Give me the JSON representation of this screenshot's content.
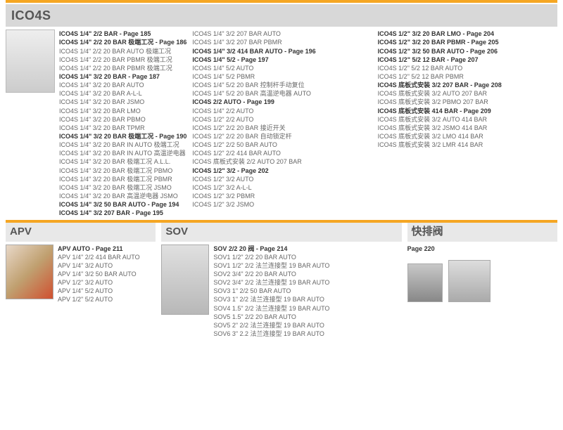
{
  "main": {
    "title": "ICO4S",
    "col1": {
      "groups": [
        {
          "head": "ICO4S 1/4\" 2/2 BAR - Page 185"
        },
        {
          "head": "ICO4S 1/4\" 2/2 20 BAR 极端工况 - Page 186",
          "items": [
            "ICO4S 1/4\" 2/2 20 BAR AUTO 极端工况",
            "ICO4S 1/4\" 2/2 20 BAR PBMR 极端工况",
            "ICO4S 1/4\" 2/2 20 BAR PBMR 极端工况"
          ]
        },
        {
          "head": "ICO4S 1/4\" 3/2 20 BAR - Page 187",
          "items": [
            "ICO4S 1/4\" 3/2 20 BAR AUTO",
            "ICO4S 1/4\" 3/2 20 BAR A-L-L",
            "ICO4S 1/4\" 3/2 20 BAR JSMO",
            "ICO4S 1/4\" 3/2 20 BAR LMO",
            "ICO4S 1/4\" 3/2 20 BAR PBMO",
            "ICO4S 1/4\" 3/2 20 BAR TPMR"
          ]
        },
        {
          "head": "ICO4S 1/4\" 3/2 20 BAR 极端工况 - Page 190",
          "items": [
            "ICO4S 1/4\" 3/2 20 BAR IN AUTO 极端工况",
            "ICO4S 1/4\" 3/2 20 BAR IN AUTO 高温逆电器",
            "ICO4S 1/4\" 3/2 20 BAR 极端工况 A.L.L.",
            "ICO4S 1/4\" 3/2 20 BAR 极端工况 PBMO",
            "ICO4S 1/4\" 3/2 20 BAR 极端工况 PBMR",
            "ICO4S 1/4\" 3/2 20 BAR 极端工况 JSMO",
            "ICO4S 1/4\" 3/2 20 BAR 高温逆电器  JSMO"
          ]
        },
        {
          "head": "ICO4S 1/4\" 3/2 50 BAR AUTO - Page 194"
        },
        {
          "head": "ICO4S 1/4\" 3/2 207 BAR - Page 195"
        }
      ]
    },
    "col2": {
      "groups": [
        {
          "items": [
            "ICO4S 1/4\" 3/2 207 BAR  AUTO",
            "ICO4S 1/4\" 3/2 207 BAR  PBMR"
          ]
        },
        {
          "head": "ICO4S 1/4\" 3/2 414 BAR AUTO - Page 196"
        },
        {
          "head": "ICO4S 1/4\" 5/2 - Page 197",
          "items": [
            "ICO4S 1/4\" 5/2 AUTO",
            "ICO4S 1/4\" 5/2 PBMR",
            "ICO4S 1/4\" 5/2 20 BAR 控制杆手动复位",
            "ICO4S 1/4\" 5/2 20 BAR 高温逆电器 AUTO"
          ]
        },
        {
          "head": "ICO4S 2/2 AUTO - Page 199",
          "items": [
            "ICO4S 1/4\" 2/2 AUTO",
            "ICO4S 1/2\" 2/2 AUTO",
            "ICO4S 1/2\" 2/2 20 BAR 接近开关",
            "ICO4S 1/2\" 2/2 20 BAR 自动锁定杆",
            "ICO4S 1/2\" 2/2 50 BAR AUTO",
            "ICO4S 1/2\" 2/2 414 BAR AUTO",
            "ICO4S 底板式安装 2/2 AUTO 207 BAR"
          ]
        },
        {
          "head": "ICO4S 1/2\" 3/2 - Page 202",
          "items": [
            "ICO4S 1/2\" 3/2 AUTO",
            "ICO4S 1/2\" 3/2 A-L-L",
            "ICO4S 1/2\" 3/2 PBMR",
            "ICO4S 1/2\" 3/2 JSMO"
          ]
        }
      ]
    },
    "col3": {
      "groups": [
        {
          "head": "ICO4S 1/2\" 3/2 20 BAR LMO - Page 204"
        },
        {
          "head": "ICO4S 1/2\" 3/2 20 BAR PBMR - Page 205"
        },
        {
          "head": "ICO4S 1/2\" 3/2 50 BAR AUTO - Page 206"
        },
        {
          "head": "ICO4S 1/2\" 5/2 12 BAR - Page 207",
          "items": [
            "ICO4S 1/2\" 5/2 12 BAR AUTO",
            "ICO4S 1/2\" 5/2 12 BAR PBMR"
          ]
        },
        {
          "head": "ICO4S 底板式安装 3/2 207 BAR - Page 208",
          "items": [
            "ICO4S 底板式安装 3/2 AUTO 207 BAR",
            "ICO4S 底板式安装 3/2 PBMO 207 BAR"
          ]
        },
        {
          "head": "ICO4S 底板式安装 414 BAR - Page 209",
          "items": [
            "ICO4S 底板式安装 3/2 AUTO 414 BAR",
            "ICO4S 底板式安装 3/2 JSMO 414 BAR",
            "ICO4S 底板式安装 3/2 LMO 414 BAR",
            "ICO4S 底板式安装 3/2 LMR 414 BAR"
          ]
        }
      ]
    }
  },
  "apv": {
    "title": "APV",
    "head": "APV AUTO - Page 211",
    "items": [
      "APV 1/4\" 2/2 414 BAR AUTO",
      "APV 1/4\" 3/2 AUTO",
      "APV 1/4\" 3/2 50 BAR AUTO",
      "APV 1/2\" 3/2 AUTO",
      "APV 1/4\" 5/2 AUTO",
      "APV 1/2\" 5/2 AUTO"
    ]
  },
  "sov": {
    "title": "SOV",
    "head": "SOV 2/2 20 阀 - Page 214",
    "items": [
      "SOV1 1/2\" 2/2 20 BAR AUTO",
      "SOV1 1/2\" 2/2 法兰连接型 19 BAR AUTO",
      "SOV2 3/4\" 2/2 20 BAR AUTO",
      "SOV2 3/4\" 2/2 法兰连接型 19 BAR AUTO",
      "SOV3 1\" 2/2 50 BAR AUTO",
      "SOV3 1\" 2/2 法兰连接型 19 BAR AUTO",
      "SOV4 1.5\" 2/2 法兰连接型 19 BAR AUTO",
      "SOV5 1.5\" 2/2 20 BAR AUTO",
      "SOV5 2\" 2/2 法兰连接型 19 BAR AUTO",
      "SOV6 3\" 2.2 法兰连接型 19 BAR AUTO"
    ]
  },
  "kp": {
    "title": "快排阀",
    "head": "Page 220"
  }
}
